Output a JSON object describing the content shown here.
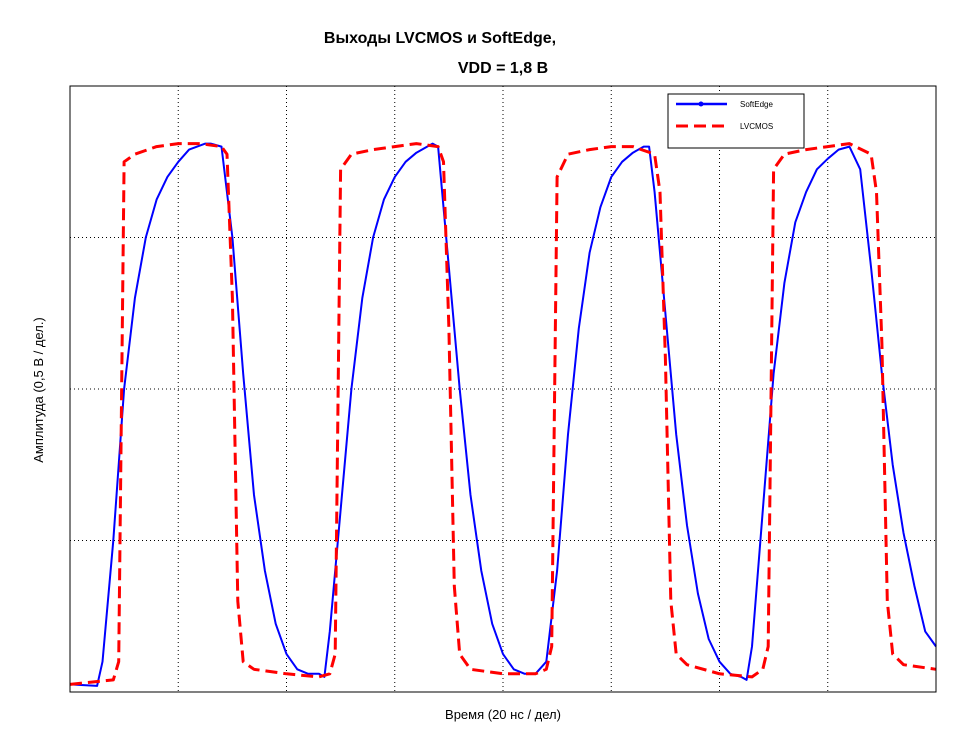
{
  "chart_data": {
    "type": "line",
    "title": "Выходы LVCMOS и SoftEdge,",
    "subtitle": "VDD = 1,8 В",
    "xlabel": "Время (20 нс / дел)",
    "ylabel": "Амплитуда (0,5 В / дел.)",
    "x_divisions": 8,
    "y_divisions": 4,
    "xlim": [
      0,
      8
    ],
    "ylim": [
      0,
      4
    ],
    "grid": true,
    "legend_position": "top-right",
    "series": [
      {
        "name": "SoftEdge",
        "color": "#0000ff",
        "style": "solid-with-markers",
        "points": [
          [
            0.0,
            0.05
          ],
          [
            0.25,
            0.04
          ],
          [
            0.3,
            0.2
          ],
          [
            0.4,
            1.0
          ],
          [
            0.5,
            2.0
          ],
          [
            0.6,
            2.6
          ],
          [
            0.7,
            3.0
          ],
          [
            0.8,
            3.25
          ],
          [
            0.9,
            3.4
          ],
          [
            1.0,
            3.5
          ],
          [
            1.1,
            3.58
          ],
          [
            1.25,
            3.62
          ],
          [
            1.3,
            3.62
          ],
          [
            1.4,
            3.6
          ],
          [
            1.5,
            3.0
          ],
          [
            1.6,
            2.1
          ],
          [
            1.7,
            1.3
          ],
          [
            1.8,
            0.8
          ],
          [
            1.9,
            0.45
          ],
          [
            2.0,
            0.25
          ],
          [
            2.1,
            0.15
          ],
          [
            2.2,
            0.12
          ],
          [
            2.3,
            0.12
          ],
          [
            2.35,
            0.1
          ],
          [
            2.4,
            0.4
          ],
          [
            2.5,
            1.2
          ],
          [
            2.6,
            2.0
          ],
          [
            2.7,
            2.6
          ],
          [
            2.8,
            3.0
          ],
          [
            2.9,
            3.25
          ],
          [
            3.0,
            3.4
          ],
          [
            3.1,
            3.5
          ],
          [
            3.2,
            3.56
          ],
          [
            3.3,
            3.6
          ],
          [
            3.35,
            3.62
          ],
          [
            3.4,
            3.6
          ],
          [
            3.5,
            2.8
          ],
          [
            3.6,
            2.0
          ],
          [
            3.7,
            1.3
          ],
          [
            3.8,
            0.8
          ],
          [
            3.9,
            0.45
          ],
          [
            4.0,
            0.25
          ],
          [
            4.1,
            0.15
          ],
          [
            4.2,
            0.12
          ],
          [
            4.3,
            0.12
          ],
          [
            4.4,
            0.2
          ],
          [
            4.5,
            0.8
          ],
          [
            4.6,
            1.7
          ],
          [
            4.7,
            2.4
          ],
          [
            4.8,
            2.9
          ],
          [
            4.9,
            3.2
          ],
          [
            5.0,
            3.4
          ],
          [
            5.1,
            3.5
          ],
          [
            5.2,
            3.56
          ],
          [
            5.3,
            3.6
          ],
          [
            5.35,
            3.6
          ],
          [
            5.4,
            3.3
          ],
          [
            5.5,
            2.5
          ],
          [
            5.6,
            1.7
          ],
          [
            5.7,
            1.1
          ],
          [
            5.8,
            0.65
          ],
          [
            5.9,
            0.35
          ],
          [
            6.0,
            0.2
          ],
          [
            6.1,
            0.12
          ],
          [
            6.2,
            0.1
          ],
          [
            6.25,
            0.08
          ],
          [
            6.3,
            0.3
          ],
          [
            6.4,
            1.2
          ],
          [
            6.5,
            2.1
          ],
          [
            6.6,
            2.7
          ],
          [
            6.7,
            3.1
          ],
          [
            6.8,
            3.3
          ],
          [
            6.9,
            3.45
          ],
          [
            7.0,
            3.52
          ],
          [
            7.1,
            3.58
          ],
          [
            7.2,
            3.6
          ],
          [
            7.3,
            3.45
          ],
          [
            7.4,
            2.8
          ],
          [
            7.5,
            2.1
          ],
          [
            7.6,
            1.5
          ],
          [
            7.7,
            1.05
          ],
          [
            7.8,
            0.7
          ],
          [
            7.9,
            0.4
          ],
          [
            8.0,
            0.3
          ]
        ]
      },
      {
        "name": "LVCMOS",
        "color": "#ff0000",
        "style": "dashed",
        "points": [
          [
            0.0,
            0.05
          ],
          [
            0.4,
            0.08
          ],
          [
            0.45,
            0.2
          ],
          [
            0.5,
            3.5
          ],
          [
            0.6,
            3.55
          ],
          [
            0.8,
            3.6
          ],
          [
            1.0,
            3.62
          ],
          [
            1.2,
            3.62
          ],
          [
            1.4,
            3.6
          ],
          [
            1.45,
            3.55
          ],
          [
            1.5,
            2.6
          ],
          [
            1.55,
            0.6
          ],
          [
            1.6,
            0.2
          ],
          [
            1.7,
            0.15
          ],
          [
            2.0,
            0.12
          ],
          [
            2.3,
            0.1
          ],
          [
            2.4,
            0.12
          ],
          [
            2.45,
            0.25
          ],
          [
            2.5,
            3.45
          ],
          [
            2.6,
            3.55
          ],
          [
            2.8,
            3.58
          ],
          [
            3.0,
            3.6
          ],
          [
            3.2,
            3.62
          ],
          [
            3.4,
            3.6
          ],
          [
            3.45,
            3.5
          ],
          [
            3.5,
            2.4
          ],
          [
            3.55,
            0.7
          ],
          [
            3.6,
            0.25
          ],
          [
            3.7,
            0.15
          ],
          [
            4.0,
            0.12
          ],
          [
            4.3,
            0.12
          ],
          [
            4.4,
            0.15
          ],
          [
            4.45,
            0.3
          ],
          [
            4.5,
            3.4
          ],
          [
            4.6,
            3.55
          ],
          [
            4.8,
            3.58
          ],
          [
            5.0,
            3.6
          ],
          [
            5.2,
            3.6
          ],
          [
            5.4,
            3.55
          ],
          [
            5.45,
            3.3
          ],
          [
            5.5,
            2.2
          ],
          [
            5.55,
            0.6
          ],
          [
            5.6,
            0.25
          ],
          [
            5.7,
            0.18
          ],
          [
            6.0,
            0.12
          ],
          [
            6.3,
            0.1
          ],
          [
            6.4,
            0.15
          ],
          [
            6.45,
            0.3
          ],
          [
            6.5,
            3.45
          ],
          [
            6.6,
            3.55
          ],
          [
            6.8,
            3.58
          ],
          [
            7.0,
            3.6
          ],
          [
            7.2,
            3.62
          ],
          [
            7.4,
            3.55
          ],
          [
            7.45,
            3.3
          ],
          [
            7.5,
            2.3
          ],
          [
            7.55,
            0.6
          ],
          [
            7.6,
            0.25
          ],
          [
            7.7,
            0.18
          ],
          [
            8.0,
            0.15
          ]
        ]
      }
    ]
  }
}
